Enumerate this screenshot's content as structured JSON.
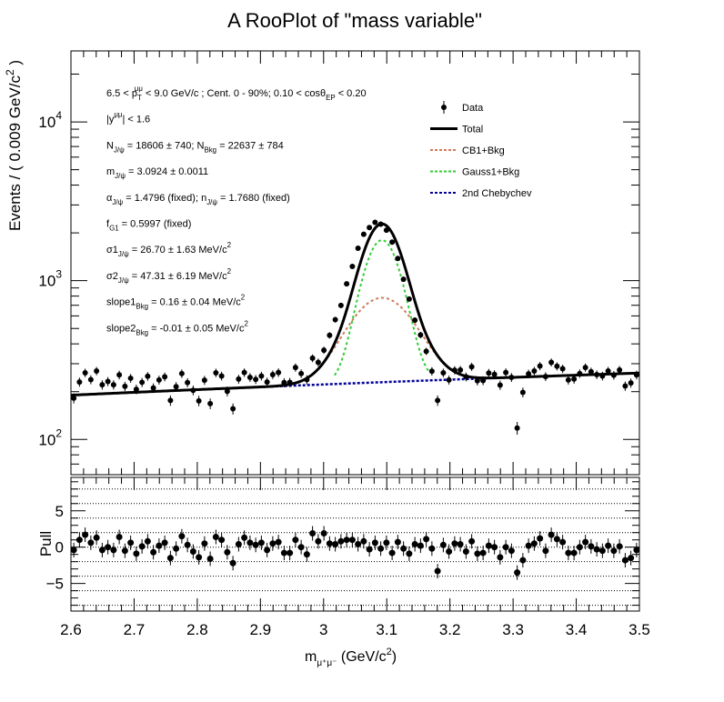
{
  "chart_data": [
    {
      "type": "scatter",
      "title": "A RooPlot of \"mass variable\"",
      "ylabel": "Events / ( 0.009 GeV/c^2 )",
      "ylabel_parts": {
        "main": "Events / ( 0.009 GeV/c",
        "sup": "2",
        "tail": " )"
      },
      "yscale": "log",
      "ylim": [
        60,
        28000
      ],
      "xlim": [
        2.6,
        3.5
      ],
      "grid": false,
      "legend_position": "top-right",
      "yticks": [
        100,
        1000,
        10000
      ],
      "ytick_labels": [
        {
          "base": "10",
          "exp": "2"
        },
        {
          "base": "10",
          "exp": "3"
        },
        {
          "base": "10",
          "exp": "4"
        }
      ],
      "legend": [
        {
          "label": "Data",
          "style": "marker",
          "color": "#000000"
        },
        {
          "label": "Total",
          "style": "solid",
          "color": "#000000"
        },
        {
          "label": "CB1+Bkg",
          "style": "dashed",
          "color": "#d07a5a"
        },
        {
          "label": "Gauss1+Bkg",
          "style": "dashed",
          "color": "#33cc33"
        },
        {
          "label": "2nd Chebychev",
          "style": "dashed",
          "color": "#000099"
        }
      ],
      "annotations": [
        [
          {
            "t": "6.5 < p"
          },
          {
            "t": "T",
            "sub": true
          },
          {
            "t": "μμ",
            "sup": true,
            "dx": -8
          },
          {
            "t": " < 9.0 GeV/c ; Cent. 0 - 90%; 0.10 < cosθ"
          },
          {
            "t": "EP",
            "sub": true
          },
          {
            "t": " < 0.20"
          }
        ],
        [
          {
            "t": "|y"
          },
          {
            "t": "μμ",
            "sup": true
          },
          {
            "t": "| < 1.6"
          }
        ],
        [
          {
            "t": "N"
          },
          {
            "t": "J/ψ",
            "sub": true
          },
          {
            "t": " = 18606   ± 740; N"
          },
          {
            "t": "Bkg",
            "sub": true
          },
          {
            "t": " = 22637   ± 784"
          }
        ],
        [
          {
            "t": "m"
          },
          {
            "t": "J/ψ",
            "sub": true
          },
          {
            "t": " = 3.0924   ± 0.0011"
          }
        ],
        [
          {
            "t": "α"
          },
          {
            "t": "J/ψ",
            "sub": true
          },
          {
            "t": " = 1.4796 (fixed); n"
          },
          {
            "t": "J/ψ",
            "sub": true
          },
          {
            "t": " = 1.7680 (fixed)"
          }
        ],
        [
          {
            "t": "f"
          },
          {
            "t": "G1",
            "sub": true
          },
          {
            "t": " = 0.5997 (fixed)"
          }
        ],
        [
          {
            "t": "σ1"
          },
          {
            "t": "J/ψ",
            "sub": true
          },
          {
            "t": " = 26.70   ± 1.63 MeV/c"
          },
          {
            "t": "2",
            "sup": true
          }
        ],
        [
          {
            "t": "σ2"
          },
          {
            "t": "J/ψ",
            "sub": true
          },
          {
            "t": " = 47.31   ± 6.19 MeV/c"
          },
          {
            "t": "2",
            "sup": true
          }
        ],
        [
          {
            "t": "slope1"
          },
          {
            "t": "Bkg",
            "sub": true
          },
          {
            "t": " = 0.16   ± 0.04 MeV/c"
          },
          {
            "t": "2",
            "sup": true
          }
        ],
        [
          {
            "t": "slope2"
          },
          {
            "t": "Bkg",
            "sub": true
          },
          {
            "t": " = -0.01   ± 0.05 MeV/c"
          },
          {
            "t": "2",
            "sup": true
          }
        ]
      ],
      "fit_parameters": {
        "mean": 3.0924,
        "sigma1_GeV": 0.0267,
        "sigma2_GeV": 0.04731,
        "f_G1": 0.5997,
        "peak_total": 2280,
        "peak_gauss1_bkg": 1800,
        "peak_cb1_bkg": 780
      },
      "series": [
        {
          "name": "Data",
          "x": [
            2.6045,
            2.6135,
            2.6225,
            2.6315,
            2.6405,
            2.6495,
            2.6585,
            2.6675,
            2.6765,
            2.6855,
            2.6945,
            2.7035,
            2.7125,
            2.7215,
            2.7305,
            2.7395,
            2.7485,
            2.7575,
            2.7665,
            2.7755,
            2.7845,
            2.7935,
            2.8025,
            2.8115,
            2.8205,
            2.8295,
            2.8385,
            2.8475,
            2.8565,
            2.8655,
            2.8745,
            2.8835,
            2.8925,
            2.9015,
            2.9105,
            2.9195,
            2.9285,
            2.9375,
            2.9465,
            2.9555,
            2.9645,
            2.9735,
            2.9825,
            2.9915,
            3.0005,
            3.0095,
            3.0185,
            3.0275,
            3.0365,
            3.0455,
            3.0545,
            3.0635,
            3.0725,
            3.0815,
            3.0905,
            3.0995,
            3.1085,
            3.1175,
            3.1265,
            3.1355,
            3.1445,
            3.1535,
            3.1625,
            3.1715,
            3.1805,
            3.1895,
            3.1985,
            3.2075,
            3.2165,
            3.2255,
            3.2345,
            3.2435,
            3.2525,
            3.2615,
            3.2705,
            3.2795,
            3.2885,
            3.2975,
            3.3065,
            3.3155,
            3.3245,
            3.3335,
            3.3425,
            3.3515,
            3.3605,
            3.3695,
            3.3785,
            3.3875,
            3.3965,
            3.4055,
            3.4145,
            3.4235,
            3.4325,
            3.4415,
            3.4505,
            3.4595,
            3.4685,
            3.4775,
            3.4865,
            3.4955
          ],
          "y": [
            182,
            230,
            263,
            238,
            270,
            221,
            232,
            221,
            255,
            216,
            243,
            207,
            229,
            250,
            211,
            237,
            248,
            176,
            215,
            260,
            228,
            204,
            175,
            236,
            168,
            263,
            251,
            201,
            156,
            240,
            264,
            246,
            239,
            251,
            230,
            256,
            264,
            228,
            229,
            284,
            260,
            238,
            325,
            306,
            365,
            453,
            568,
            699,
            955,
            1230,
            1600,
            1960,
            2160,
            2330,
            2270,
            2080,
            1750,
            1380,
            1020,
            766,
            564,
            455,
            359,
            269,
            176,
            263,
            237,
            273,
            274,
            248,
            287,
            234,
            235,
            262,
            257,
            220,
            264,
            246,
            118,
            198,
            259,
            270,
            290,
            249,
            306,
            289,
            279,
            237,
            240,
            260,
            284,
            267,
            256,
            251,
            270,
            254,
            274,
            217,
            227,
            255
          ],
          "pull": [
            -0.4,
            1.0,
            1.7,
            0.6,
            1.3,
            -0.4,
            0.0,
            -0.4,
            1.4,
            -0.5,
            0.6,
            -0.9,
            0.1,
            0.8,
            -0.7,
            0.2,
            0.6,
            -1.5,
            -0.2,
            1.5,
            0.3,
            -0.6,
            -1.4,
            0.5,
            -1.6,
            1.4,
            1.0,
            -0.7,
            -2.2,
            0.4,
            1.3,
            0.6,
            0.3,
            0.6,
            -0.4,
            0.5,
            0.7,
            -0.8,
            -0.8,
            1.0,
            0.0,
            -1.0,
            1.9,
            0.8,
            1.9,
            0.5,
            0.4,
            0.8,
            1.0,
            1.0,
            0.4,
            0.8,
            -0.3,
            0.6,
            -0.2,
            0.6,
            -0.8,
            0.7,
            -0.2,
            -0.9,
            0.4,
            0.2,
            1.1,
            -0.2,
            -3.3,
            0.3,
            -0.6,
            0.5,
            0.4,
            -0.6,
            0.8,
            -0.9,
            -0.8,
            0.2,
            0.0,
            -1.4,
            0.0,
            -0.5,
            -3.5,
            -1.8,
            0.2,
            0.5,
            1.2,
            -0.5,
            1.7,
            1.1,
            0.7,
            -0.8,
            -0.8,
            0.0,
            0.7,
            0.1,
            -0.3,
            -0.5,
            0.2,
            -0.5,
            0.1,
            -1.8,
            -1.5,
            -0.4
          ]
        },
        {
          "name": "Total",
          "type": "line"
        },
        {
          "name": "CB1+Bkg",
          "type": "line"
        },
        {
          "name": "Gauss1+Bkg",
          "type": "line"
        },
        {
          "name": "2nd Chebychev",
          "type": "line",
          "x": [
            2.6,
            3.5
          ],
          "y": [
            190,
            262
          ]
        }
      ]
    },
    {
      "type": "scatter",
      "ylabel": "Pull",
      "xlabel": "m",
      "xlabel_parts": {
        "main": "m",
        "sub": "μ⁺μ⁻",
        "tail": " (GeV/c",
        "sup": "2",
        "end": ")"
      },
      "xlim": [
        2.6,
        3.5
      ],
      "ylim": [
        -8.8,
        9.6
      ],
      "xticks": [
        2.6,
        2.7,
        2.8,
        2.9,
        3.0,
        3.1,
        3.2,
        3.3,
        3.4,
        3.5
      ],
      "xtick_labels": [
        "2.6",
        "2.7",
        "2.8",
        "2.9",
        "3",
        "3.1",
        "3.2",
        "3.3",
        "3.4",
        "3.5"
      ],
      "yticks": [
        5,
        0,
        -5
      ],
      "ytick_labels": [
        "5",
        "0",
        "−5"
      ],
      "reference_lines": [
        -8,
        -6,
        -4,
        -2,
        0,
        2,
        4,
        6,
        8
      ]
    }
  ]
}
